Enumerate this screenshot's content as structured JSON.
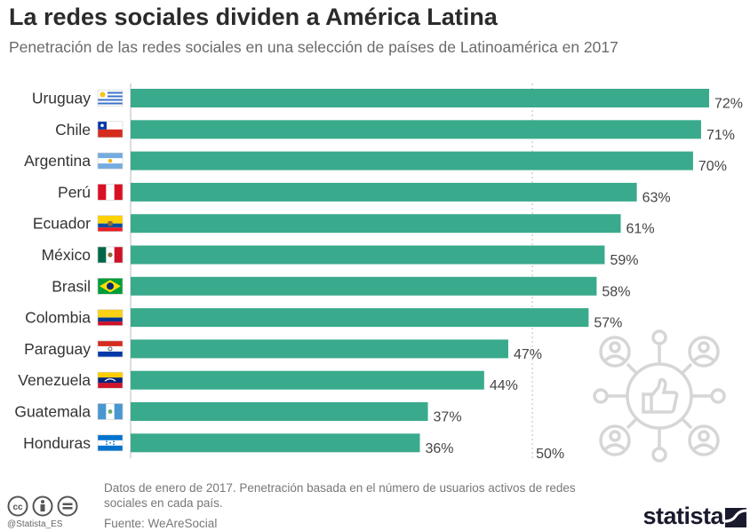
{
  "header": {
    "title": "La redes sociales dividen a América Latina",
    "subtitle": "Penetración de las redes sociales en una selección de países de Latinoamérica en 2017"
  },
  "chart_data": {
    "type": "bar",
    "orientation": "horizontal",
    "categories": [
      "Uruguay",
      "Chile",
      "Argentina",
      "Perú",
      "Ecuador",
      "México",
      "Brasil",
      "Colombia",
      "Paraguay",
      "Venezuela",
      "Guatemala",
      "Honduras"
    ],
    "values": [
      72,
      71,
      70,
      63,
      61,
      59,
      58,
      57,
      47,
      44,
      37,
      36
    ],
    "value_labels": [
      "72%",
      "71%",
      "70%",
      "63%",
      "61%",
      "59%",
      "58%",
      "57%",
      "47%",
      "44%",
      "37%",
      "36%"
    ],
    "xlim": [
      0,
      72
    ],
    "reference_line": {
      "value": 50,
      "label": "50%"
    },
    "bar_color": "#3aaa8c"
  },
  "footer": {
    "note": "Datos de enero de 2017. Penetración basada en el número de usuarios activos de redes sociales en cada país.",
    "source": "Fuente: WeAreSocial",
    "handle": "@Statista_ES",
    "brand": "statista"
  },
  "icons": [
    "cc-icon",
    "attribution-icon",
    "no-derivatives-icon",
    "social-network-icon",
    "statista-logo-icon"
  ]
}
